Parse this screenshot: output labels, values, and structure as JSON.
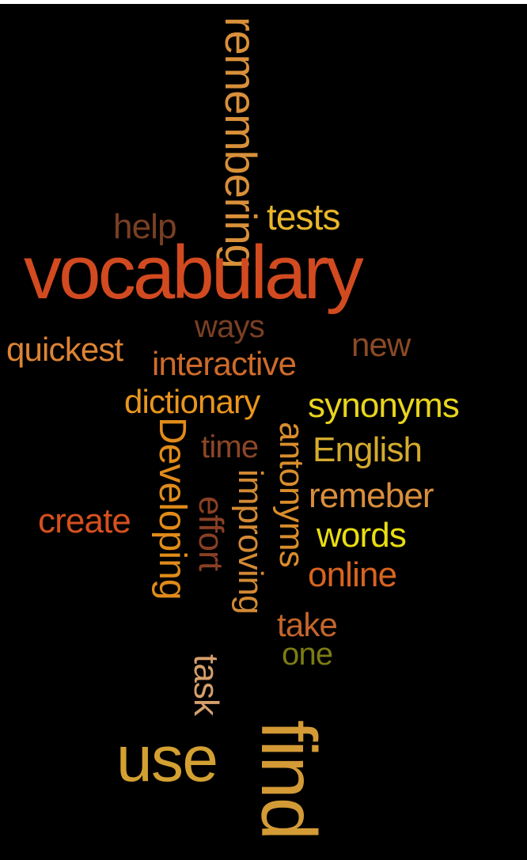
{
  "background_color": "#000000",
  "words": [
    {
      "key": "remembering",
      "text": "remembering",
      "color": "#d9903a",
      "orientation": "vertical"
    },
    {
      "key": "tests",
      "text": "tests",
      "color": "#e9b72a",
      "orientation": "horizontal"
    },
    {
      "key": "help",
      "text": "help",
      "color": "#7a3f24",
      "orientation": "horizontal"
    },
    {
      "key": "vocabulary",
      "text": "vocabulary",
      "color": "#d24a20",
      "orientation": "horizontal"
    },
    {
      "key": "ways",
      "text": "ways",
      "color": "#7a3f24",
      "orientation": "horizontal"
    },
    {
      "key": "quickest",
      "text": "quickest",
      "color": "#dd8434",
      "orientation": "horizontal"
    },
    {
      "key": "new",
      "text": "new",
      "color": "#8a4a26",
      "orientation": "horizontal"
    },
    {
      "key": "interactive",
      "text": "interactive",
      "color": "#cf6b2a",
      "orientation": "horizontal"
    },
    {
      "key": "dictionary",
      "text": "dictionary",
      "color": "#e9951e",
      "orientation": "horizontal"
    },
    {
      "key": "synonyms",
      "text": "synonyms",
      "color": "#e8d41e",
      "orientation": "horizontal"
    },
    {
      "key": "Developing",
      "text": "Developing",
      "color": "#e08b1a",
      "orientation": "vertical"
    },
    {
      "key": "antonyms",
      "text": "antonyms",
      "color": "#d98d2c",
      "orientation": "vertical"
    },
    {
      "key": "time",
      "text": "time",
      "color": "#8c4627",
      "orientation": "horizontal"
    },
    {
      "key": "English",
      "text": "English",
      "color": "#d4ab2e",
      "orientation": "horizontal"
    },
    {
      "key": "improving",
      "text": "improving",
      "color": "#d38a34",
      "orientation": "vertical"
    },
    {
      "key": "remeber",
      "text": "remeber",
      "color": "#d98e3c",
      "orientation": "horizontal"
    },
    {
      "key": "effort",
      "text": "effort",
      "color": "#8a3f24",
      "orientation": "vertical"
    },
    {
      "key": "create",
      "text": "create",
      "color": "#d5501f",
      "orientation": "horizontal"
    },
    {
      "key": "words",
      "text": "words",
      "color": "#e9de10",
      "orientation": "horizontal"
    },
    {
      "key": "online",
      "text": "online",
      "color": "#d86420",
      "orientation": "horizontal"
    },
    {
      "key": "take",
      "text": "take",
      "color": "#c4652c",
      "orientation": "horizontal"
    },
    {
      "key": "one",
      "text": "one",
      "color": "#7c7c14",
      "orientation": "horizontal"
    },
    {
      "key": "task",
      "text": "task",
      "color": "#d69f6c",
      "orientation": "vertical"
    },
    {
      "key": "use",
      "text": "use",
      "color": "#d3a032",
      "orientation": "horizontal"
    },
    {
      "key": "find",
      "text": "find",
      "color": "#d39a36",
      "orientation": "vertical"
    }
  ]
}
